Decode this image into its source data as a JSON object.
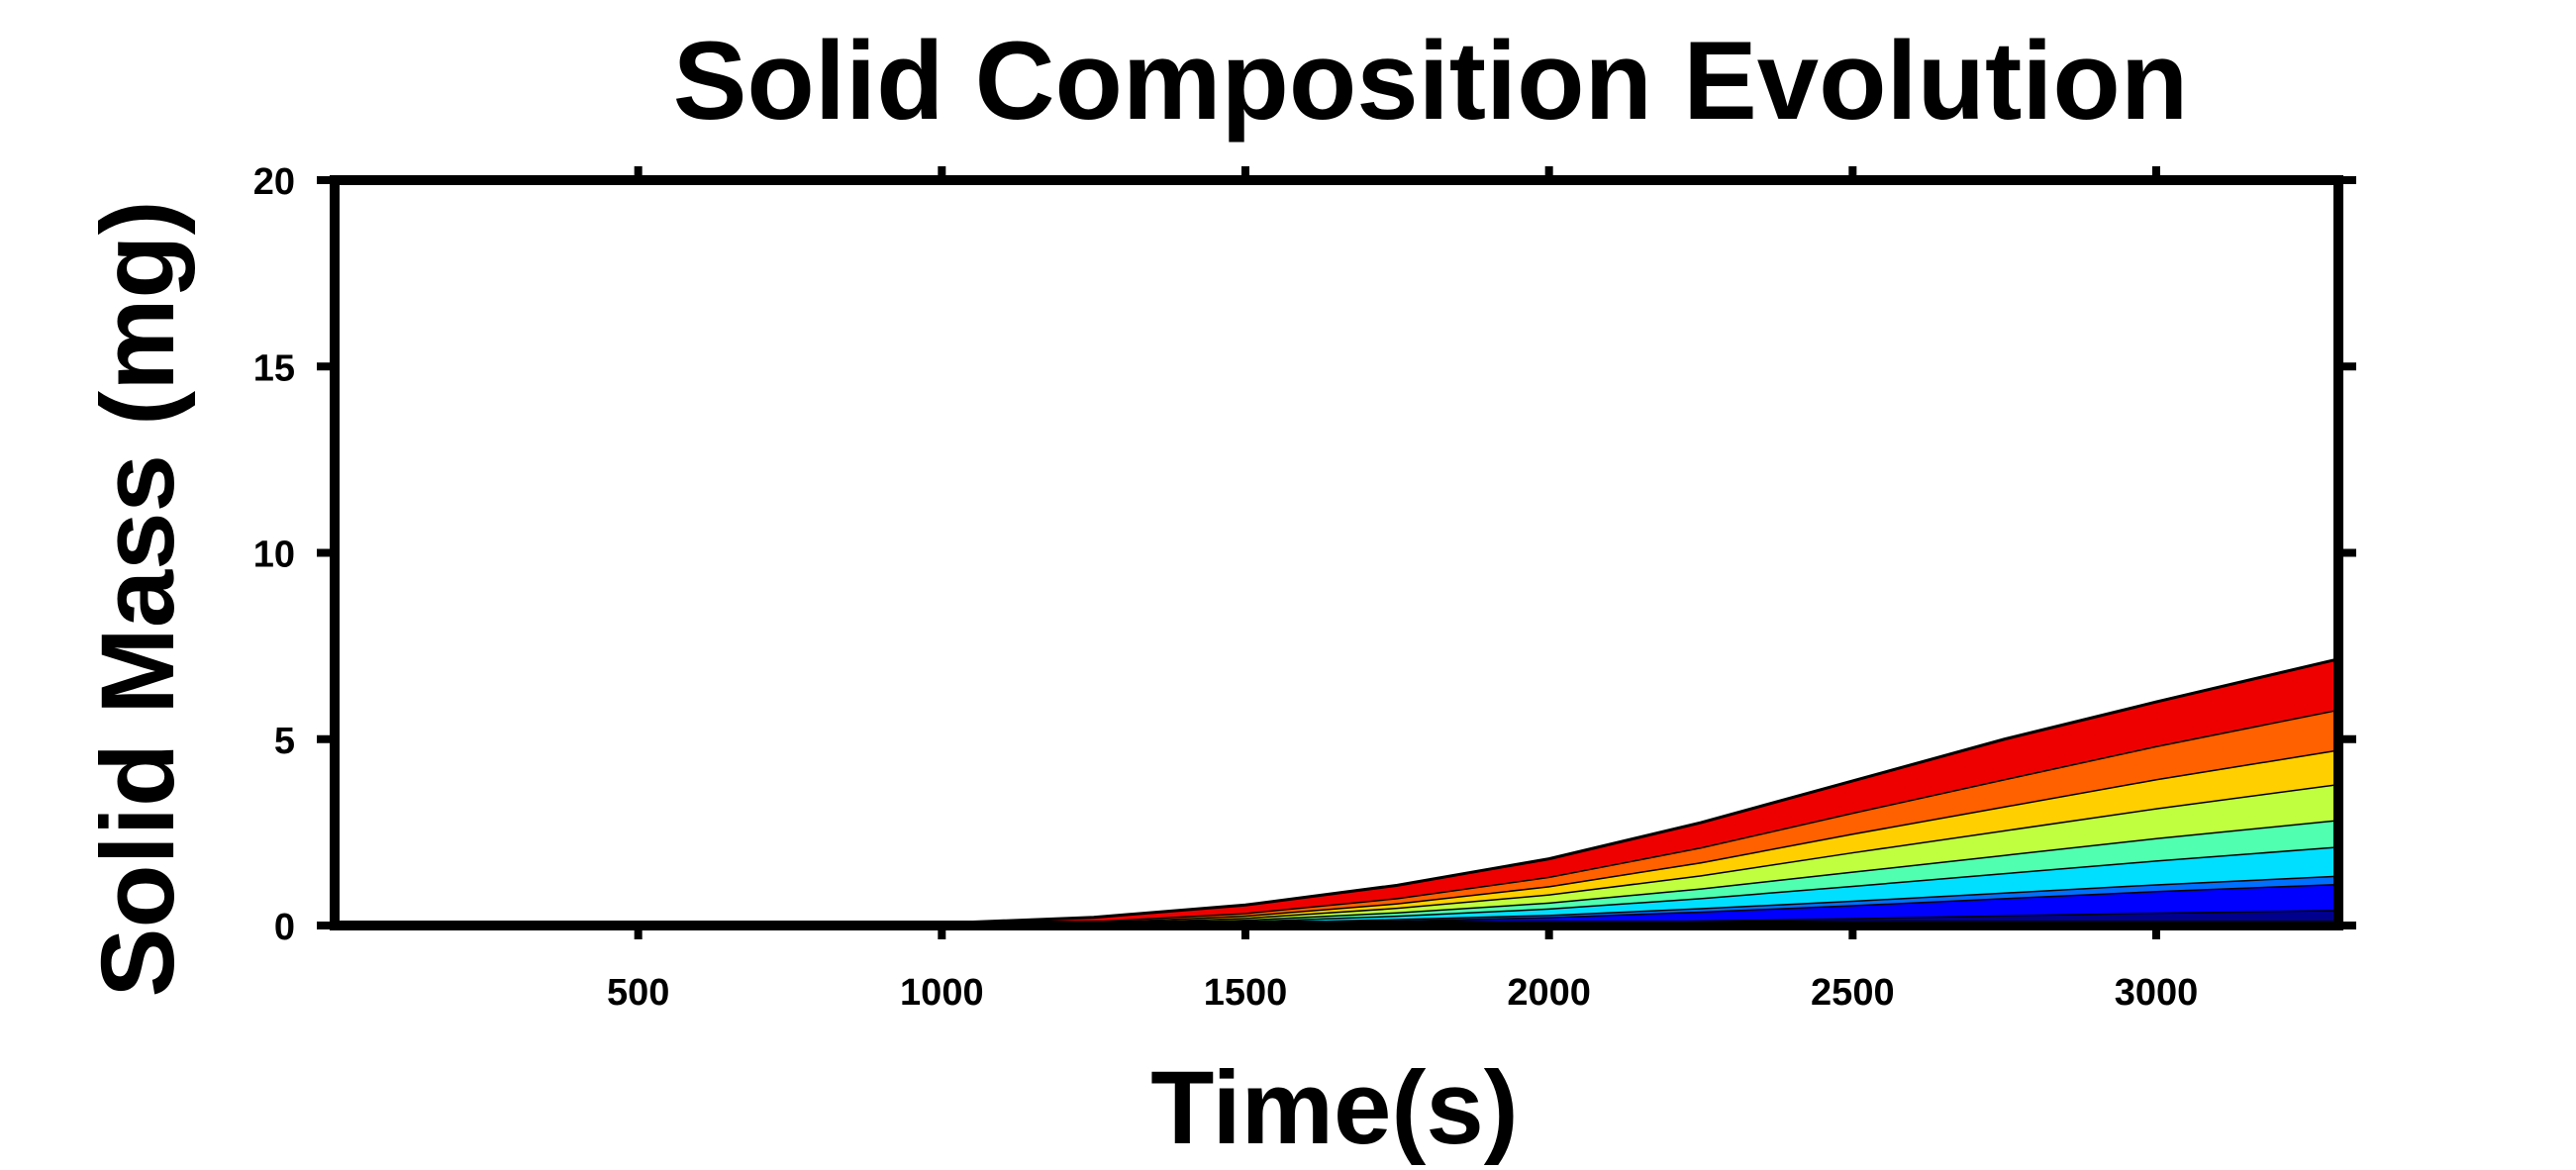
{
  "chart_data": {
    "type": "area",
    "title": "Solid Composition Evolution",
    "xlabel": "Time(s)",
    "ylabel": "Solid Mass (mg)",
    "xlim": [
      0,
      3300
    ],
    "ylim": [
      0,
      20
    ],
    "xticks": [
      500,
      1000,
      1500,
      2000,
      2500,
      3000
    ],
    "yticks": [
      0,
      5,
      10,
      15,
      20
    ],
    "stacked": true,
    "grid": false,
    "legend": "none",
    "x": [
      0,
      300,
      600,
      850,
      1000,
      1250,
      1500,
      1750,
      2000,
      2250,
      2500,
      2750,
      3000,
      3300
    ],
    "series": [
      {
        "color": "#00008f",
        "values": [
          0,
          0,
          0,
          0,
          0.0,
          0.01,
          0.02,
          0.05,
          0.08,
          0.14,
          0.2,
          0.28,
          0.35,
          0.42
        ]
      },
      {
        "color": "#0000ff",
        "values": [
          0,
          0,
          0,
          0,
          0.0,
          0.01,
          0.04,
          0.09,
          0.15,
          0.24,
          0.35,
          0.46,
          0.58,
          0.7
        ]
      },
      {
        "color": "#006fff",
        "values": [
          0,
          0,
          0,
          0,
          0.0,
          0.01,
          0.02,
          0.04,
          0.06,
          0.09,
          0.12,
          0.15,
          0.18,
          0.22
        ]
      },
      {
        "color": "#00dfff",
        "values": [
          0,
          0,
          0,
          0,
          0.0,
          0.01,
          0.04,
          0.09,
          0.17,
          0.27,
          0.4,
          0.52,
          0.64,
          0.78
        ]
      },
      {
        "color": "#50ffaf",
        "values": [
          0,
          0,
          0,
          0,
          0.0,
          0.01,
          0.04,
          0.09,
          0.16,
          0.26,
          0.38,
          0.49,
          0.6,
          0.72
        ]
      },
      {
        "color": "#bfff3f",
        "values": [
          0,
          0,
          0,
          0,
          0.0,
          0.02,
          0.05,
          0.12,
          0.22,
          0.35,
          0.52,
          0.66,
          0.8,
          0.96
        ]
      },
      {
        "color": "#ffcf00",
        "values": [
          0,
          0,
          0,
          0,
          0.0,
          0.02,
          0.06,
          0.12,
          0.22,
          0.35,
          0.5,
          0.64,
          0.78,
          0.92
        ]
      },
      {
        "color": "#ff6000",
        "values": [
          0,
          0,
          0,
          0,
          0.02,
          0.03,
          0.07,
          0.14,
          0.25,
          0.4,
          0.56,
          0.73,
          0.89,
          1.08
        ]
      },
      {
        "color": "#ef0000",
        "values": [
          0,
          0,
          0,
          0,
          0.04,
          0.1,
          0.21,
          0.34,
          0.48,
          0.66,
          0.85,
          1.07,
          1.18,
          1.35
        ]
      }
    ]
  }
}
